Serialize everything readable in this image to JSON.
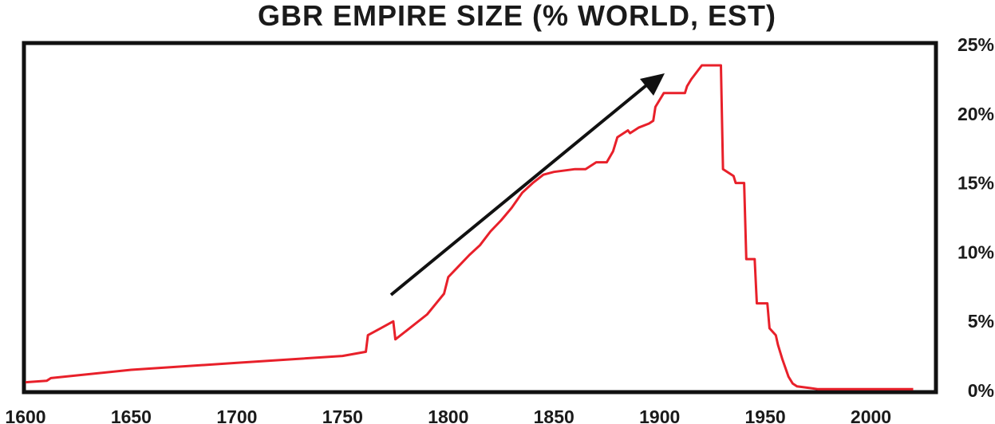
{
  "chart_data": {
    "type": "line",
    "title": "GBR EMPIRE SIZE (% WORLD, EST)",
    "xlabel": "",
    "ylabel": "",
    "xlim": [
      1600,
      2030
    ],
    "ylim": [
      0,
      25
    ],
    "y_axis_side": "right",
    "x_ticks": [
      "1600",
      "1650",
      "1700",
      "1750",
      "1800",
      "1850",
      "1900",
      "1950",
      "2000"
    ],
    "y_ticks": [
      "0%",
      "5%",
      "10%",
      "15%",
      "20%",
      "25%"
    ],
    "grid": false,
    "legend": "none",
    "line_color": "#e8202a",
    "annotation": "upward-arrow",
    "series": [
      {
        "x": [
          1600,
          1610,
          1612,
          1650,
          1700,
          1750,
          1761,
          1762,
          1768,
          1774,
          1775,
          1780,
          1790,
          1798,
          1800,
          1805,
          1810,
          1815,
          1820,
          1825,
          1830,
          1835,
          1840,
          1845,
          1850,
          1860,
          1865,
          1870,
          1875,
          1878,
          1880,
          1885,
          1886,
          1890,
          1895,
          1897,
          1898,
          1900,
          1902,
          1912,
          1913,
          1915,
          1920,
          1921,
          1929,
          1930,
          1935,
          1936,
          1940,
          1941,
          1945,
          1946,
          1951,
          1952,
          1955,
          1956,
          1958,
          1961,
          1963,
          1965,
          1970,
          1975,
          1980,
          1990,
          2000,
          2020
        ],
        "y": [
          0.6,
          0.7,
          0.9,
          1.5,
          2.0,
          2.5,
          2.8,
          4.0,
          4.5,
          5.0,
          3.7,
          4.3,
          5.5,
          7.0,
          8.2,
          9.0,
          9.8,
          10.5,
          11.5,
          12.3,
          13.2,
          14.3,
          15.0,
          15.6,
          15.8,
          16.0,
          16.0,
          16.5,
          16.5,
          17.3,
          18.3,
          18.8,
          18.6,
          19.0,
          19.3,
          19.5,
          20.5,
          21.0,
          21.5,
          21.5,
          22.0,
          22.5,
          23.5,
          23.5,
          23.5,
          16.0,
          15.5,
          15.0,
          15.0,
          9.5,
          9.5,
          6.3,
          6.3,
          4.5,
          4.0,
          3.3,
          2.3,
          1.0,
          0.5,
          0.3,
          0.2,
          0.1,
          0.1,
          0.1,
          0.1,
          0.1
        ]
      }
    ]
  }
}
